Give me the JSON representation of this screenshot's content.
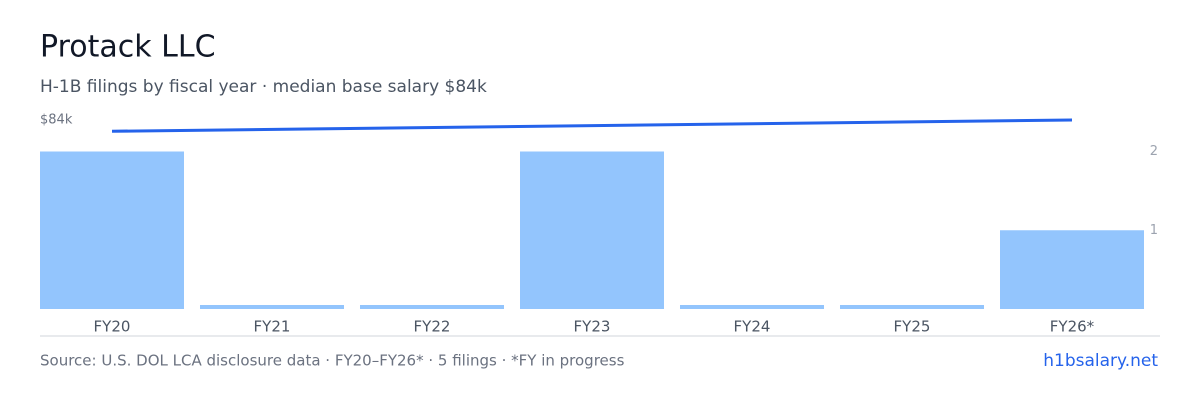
{
  "chart_data": {
    "type": "bar",
    "title": "Protack LLC",
    "subtitle": "H-1B filings by fiscal year · median base salary $84k",
    "categories": [
      "FY20",
      "FY21",
      "FY22",
      "FY23",
      "FY24",
      "FY25",
      "FY26*"
    ],
    "series": [
      {
        "type": "bar",
        "color": "#93c5fd",
        "axis": "y2",
        "values": [
          2,
          0,
          0,
          2,
          0,
          0,
          1
        ]
      },
      {
        "type": "line",
        "color": "#2563eb",
        "x": [
          "FY20",
          "FY26*"
        ],
        "values": [
          79000,
          84000
        ]
      }
    ],
    "ylim": [
      0,
      84000
    ],
    "yticks": [
      {
        "value": 84000,
        "label": "$84k"
      }
    ],
    "y2lim": [
      0,
      2.4
    ],
    "y2ticks": [
      1,
      2
    ],
    "source": "Source: U.S. DOL LCA disclosure data · FY20–FY26* · 5 filings · *FY in progress",
    "site": "h1bsalary.net"
  }
}
